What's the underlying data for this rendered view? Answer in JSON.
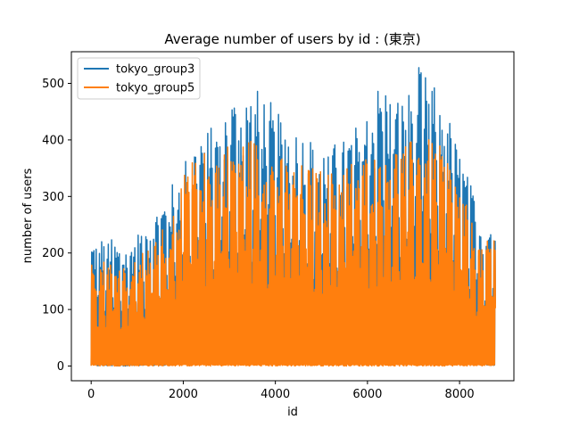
{
  "chart_data": {
    "type": "line",
    "title": "Average number of users by id : (東京)",
    "xlabel": "id",
    "ylabel": "number of users",
    "xlim": [
      -430,
      9180
    ],
    "ylim": [
      -26,
      556
    ],
    "xticks": [
      0,
      2000,
      4000,
      6000,
      8000
    ],
    "xtick_labels": [
      "0",
      "2000",
      "4000",
      "6000",
      "8000"
    ],
    "yticks": [
      0,
      100,
      200,
      300,
      400,
      500
    ],
    "ytick_labels": [
      "0",
      "100",
      "200",
      "300",
      "400",
      "500"
    ],
    "grid": false,
    "legend_position": "upper-left",
    "series": [
      {
        "name": "tokyo_group3",
        "color": "#1f77b4",
        "x_range": [
          0,
          8760
        ],
        "daily_peak_envelope": {
          "x": [
            0,
            300,
            700,
            1100,
            1500,
            1800,
            2100,
            2400,
            2700,
            3000,
            3200,
            3500,
            3800,
            4100,
            4500,
            4900,
            5200,
            5500,
            5800,
            6100,
            6300,
            6500,
            6800,
            7100,
            7400,
            7700,
            7900,
            8200,
            8500,
            8760
          ],
          "y": [
            225,
            230,
            215,
            245,
            290,
            330,
            380,
            430,
            420,
            490,
            470,
            495,
            480,
            440,
            420,
            400,
            390,
            410,
            430,
            470,
            520,
            490,
            470,
            530,
            500,
            460,
            400,
            330,
            250,
            280
          ]
        },
        "daily_min_envelope": {
          "x": [
            0,
            1500,
            2000,
            3000,
            4000,
            5000,
            6000,
            7000,
            8000,
            8760
          ],
          "y": [
            0,
            0,
            5,
            8,
            8,
            8,
            8,
            8,
            5,
            0
          ]
        }
      },
      {
        "name": "tokyo_group5",
        "color": "#ff7f0e",
        "x_range": [
          0,
          8760
        ],
        "daily_peak_envelope": {
          "x": [
            0,
            300,
            700,
            1100,
            1500,
            1800,
            2100,
            2400,
            2700,
            3000,
            3200,
            3500,
            3800,
            4100,
            4500,
            4900,
            5200,
            5500,
            5800,
            6100,
            6300,
            6500,
            6800,
            7100,
            7400,
            7700,
            7900,
            8200,
            8500,
            8760
          ],
          "y": [
            185,
            190,
            180,
            200,
            240,
            290,
            360,
            380,
            385,
            400,
            410,
            405,
            390,
            370,
            360,
            350,
            345,
            360,
            370,
            380,
            395,
            390,
            395,
            405,
            400,
            380,
            340,
            270,
            200,
            260
          ]
        },
        "daily_min_envelope": {
          "x": [
            0,
            1500,
            2000,
            3000,
            4000,
            5000,
            6000,
            7000,
            8000,
            8760
          ],
          "y": [
            0,
            0,
            0,
            0,
            0,
            0,
            0,
            0,
            0,
            0
          ]
        }
      }
    ]
  }
}
